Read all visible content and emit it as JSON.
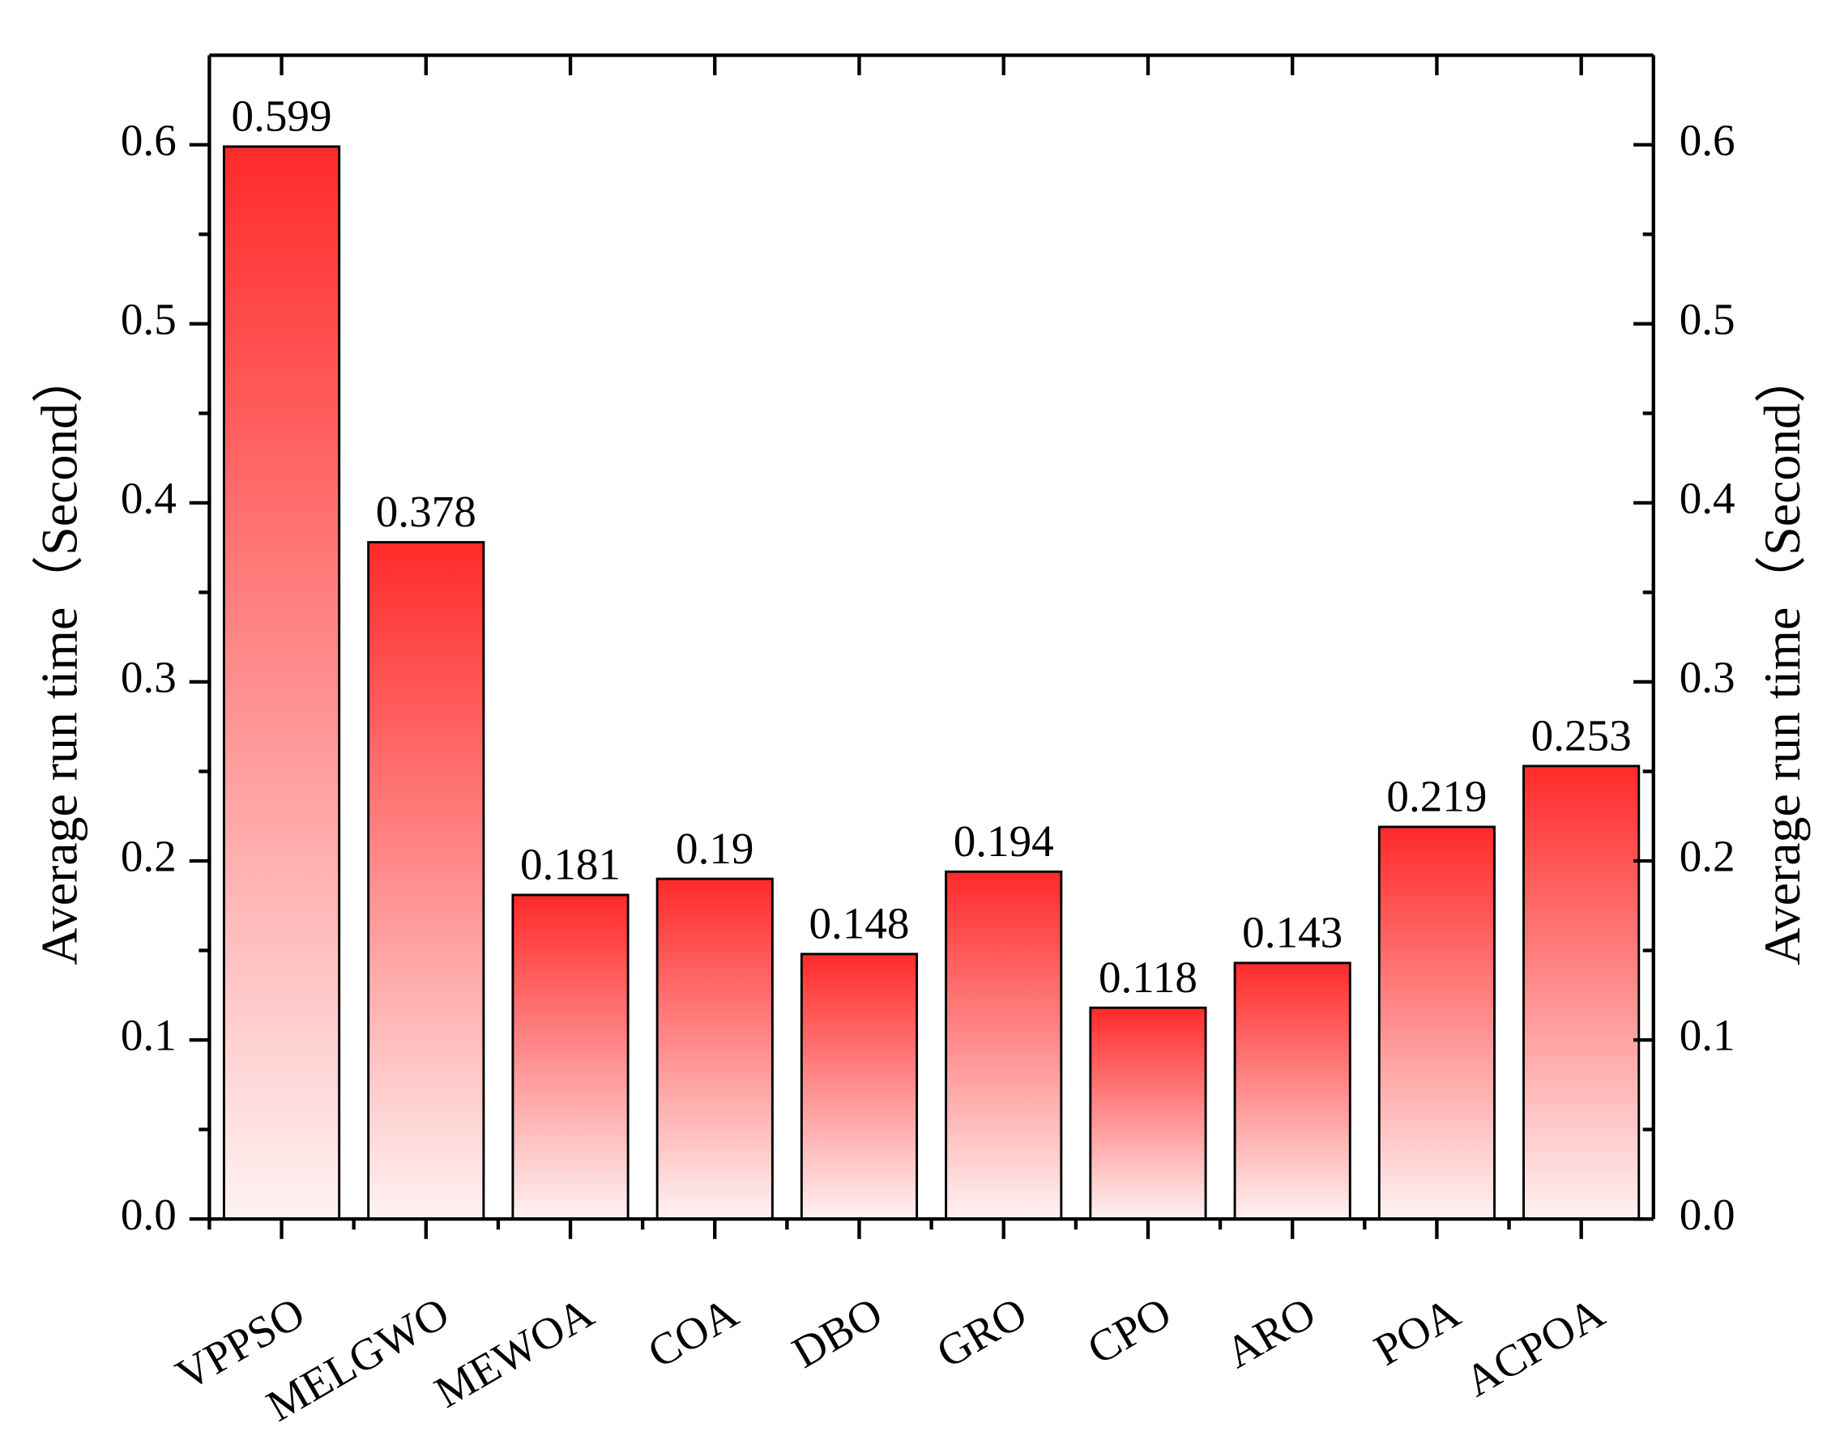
{
  "chart_data": {
    "type": "bar",
    "y_label": "Average run time（Second）",
    "y2_label": "Average run time（Second）",
    "categories": [
      "VPPSO",
      "MELGWO",
      "MEWOA",
      "COA",
      "DBO",
      "GRO",
      "CPO",
      "ARO",
      "POA",
      "ACPOA"
    ],
    "values": [
      0.599,
      0.378,
      0.181,
      0.19,
      0.148,
      0.194,
      0.118,
      0.143,
      0.219,
      0.253
    ],
    "color": "#ff2a2a",
    "ylim": [
      0,
      0.65
    ],
    "yticks": [
      {
        "value": 0,
        "label": "0.0"
      },
      0.1,
      0.2,
      0.3,
      0.4,
      0.5,
      0.6
    ],
    "y2lim": [
      0,
      0.65
    ],
    "y2ticks": [
      {
        "value": 0,
        "label": "0.0"
      },
      0.1,
      0.2,
      0.3,
      0.4,
      0.5,
      0.6
    ]
  }
}
